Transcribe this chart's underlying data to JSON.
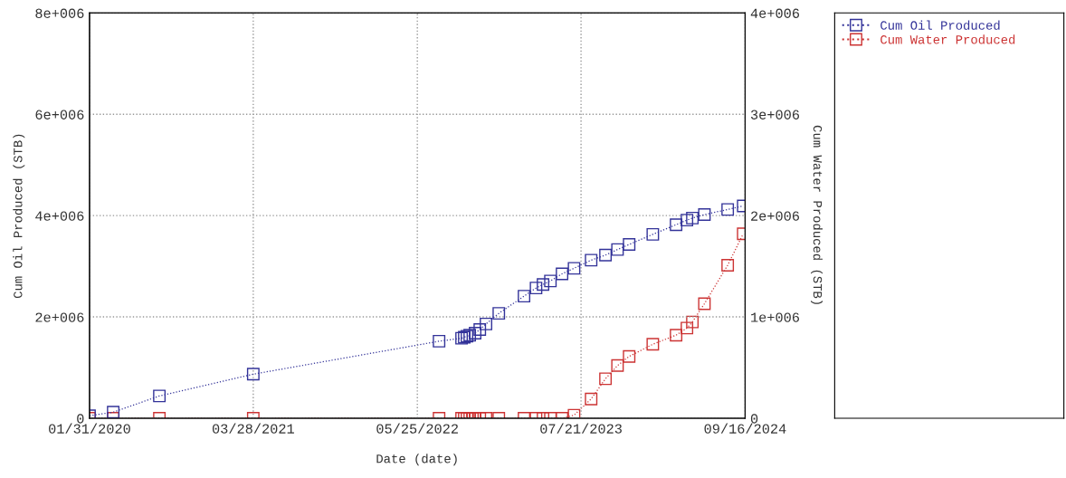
{
  "chart_data": {
    "type": "line",
    "xlabel": "Date (date)",
    "ylabel": "Cum Oil Produced (STB)",
    "y2label": "Cum Water Produced (STB)",
    "x": [
      "2020-01-31",
      "2020-04-01",
      "2020-07-29",
      "2021-03-28",
      "2022-07-20",
      "2022-09-16",
      "2022-09-23",
      "2022-09-30",
      "2022-10-07",
      "2022-10-14",
      "2022-10-21",
      "2022-11-02",
      "2022-11-18",
      "2022-12-21",
      "2023-02-24",
      "2023-03-27",
      "2023-04-14",
      "2023-05-03",
      "2023-06-02",
      "2023-07-03",
      "2023-08-16",
      "2023-09-22",
      "2023-10-23",
      "2023-11-22",
      "2024-01-22",
      "2024-03-22",
      "2024-04-19",
      "2024-05-03",
      "2024-06-03",
      "2024-08-02",
      "2024-09-11"
    ],
    "series": [
      {
        "name": "Cum Oil Produced",
        "color": "#333399",
        "values": [
          50000,
          120000,
          440000,
          870000,
          1520000,
          1580000,
          1600000,
          1620000,
          1640000,
          null,
          1680000,
          1750000,
          1860000,
          2070000,
          2410000,
          2570000,
          2640000,
          2710000,
          2850000,
          2960000,
          3120000,
          3220000,
          3330000,
          3430000,
          3630000,
          3820000,
          3910000,
          3950000,
          4020000,
          4120000,
          4190000
        ]
      },
      {
        "name": "Cum Water Produced",
        "color": "#cc3333",
        "axis": "y2",
        "values": [
          0,
          0,
          0,
          0,
          0,
          0,
          0,
          0,
          0,
          0,
          0,
          0,
          0,
          0,
          0,
          0,
          0,
          0,
          0,
          30000,
          190000,
          390000,
          520000,
          610000,
          730000,
          820000,
          890000,
          950000,
          1130000,
          1510000,
          1820000
        ]
      }
    ],
    "xlim": [
      "2020-01-31",
      "2024-09-16"
    ],
    "xticks": [
      {
        "value": "2020-01-31",
        "label": "01/31/2020"
      },
      {
        "value": "2021-03-28",
        "label": "03/28/2021"
      },
      {
        "value": "2022-05-25",
        "label": "05/25/2022"
      },
      {
        "value": "2023-07-21",
        "label": "07/21/2023"
      },
      {
        "value": "2024-09-16",
        "label": "09/16/2024"
      }
    ],
    "ylim": [
      0,
      8000000
    ],
    "yticks": [
      0,
      {
        "value": 2000000,
        "label": "2e+006"
      },
      {
        "value": 4000000,
        "label": "4e+006"
      },
      {
        "value": 6000000,
        "label": "6e+006"
      },
      {
        "value": 8000000,
        "label": "8e+006"
      }
    ],
    "y2lim": [
      0,
      4000000
    ],
    "y2ticks": [
      0,
      {
        "value": 1000000,
        "label": "1e+006"
      },
      {
        "value": 2000000,
        "label": "2e+006"
      },
      {
        "value": 3000000,
        "label": "3e+006"
      },
      {
        "value": 4000000,
        "label": "4e+006"
      }
    ],
    "grid": true,
    "legend": "right",
    "marker": "square",
    "line_style": "dotted"
  }
}
